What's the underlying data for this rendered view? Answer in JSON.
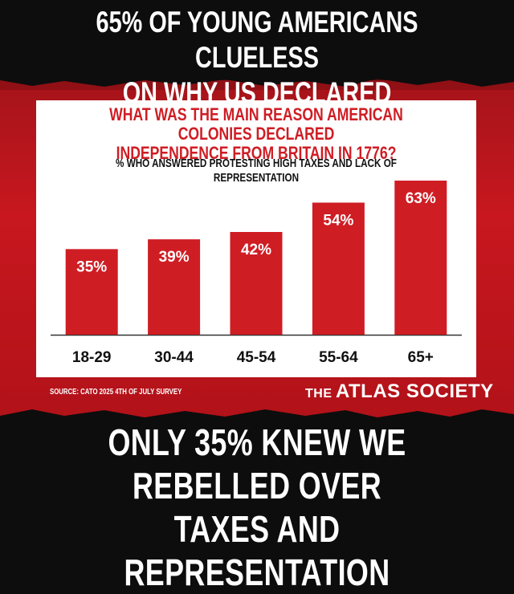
{
  "headline_top": [
    "65% of young Americans clueless",
    "on why US declared independence"
  ],
  "headline_bottom": [
    "Only 35% knew we rebelled over",
    "taxes and representation"
  ],
  "source": "Source: Cato 2025 4th of July Survey",
  "logo": {
    "prefix": "THE",
    "name": "ATLAS SOCIETY"
  },
  "colors": {
    "accent_red": "#cf1d24",
    "bar_red": "#cf1d24",
    "background": "#0d0d0d"
  },
  "chart_data": {
    "type": "bar",
    "title": "What was the main reason American colonies declared independence from Britain in 1776?",
    "title_lines": [
      "What was the main reason American colonies declared",
      "independence from Britain in 1776?"
    ],
    "subtitle": "% who answered protesting high taxes and lack of representation",
    "categories": [
      "18-29",
      "30-44",
      "45-54",
      "55-64",
      "65+"
    ],
    "values": [
      35,
      39,
      42,
      54,
      63
    ],
    "value_labels": [
      "35%",
      "39%",
      "42%",
      "54%",
      "63%"
    ],
    "xlabel": "",
    "ylabel": "",
    "ylim": [
      0,
      63
    ],
    "grid": false,
    "legend": "none"
  }
}
